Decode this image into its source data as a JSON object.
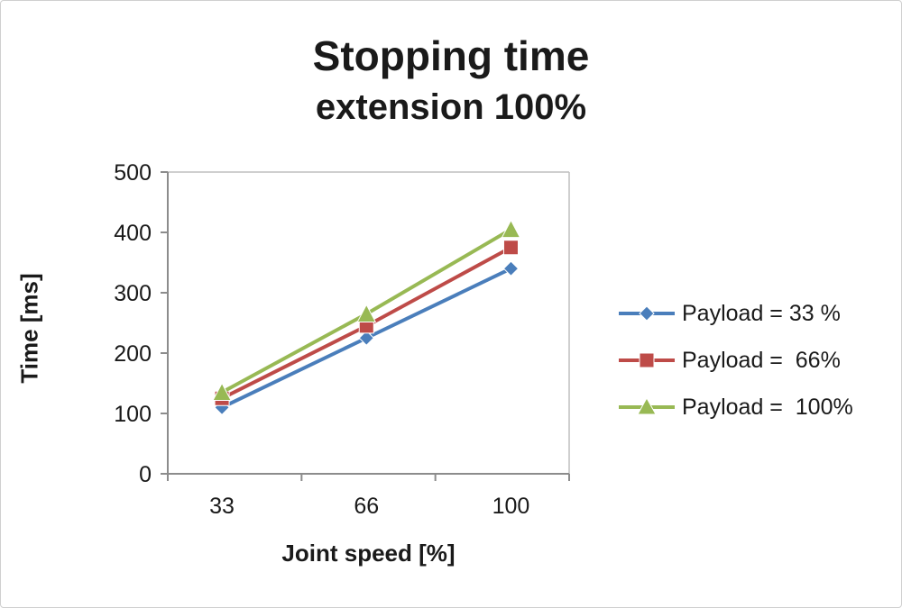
{
  "chart_data": {
    "type": "line",
    "title": "Stopping time extension 100%",
    "title_line1": "Stopping time",
    "title_line2": "extension 100%",
    "xlabel": "Joint speed [%]",
    "ylabel": "Time [ms]",
    "categories": [
      "33",
      "66",
      "100"
    ],
    "ylim": [
      0,
      500
    ],
    "ytick_step": 100,
    "grid": false,
    "legend_position": "right",
    "series": [
      {
        "name": "Payload = 33 %",
        "values": [
          110,
          225,
          340
        ],
        "color": "#4a7ebb",
        "marker": "diamond"
      },
      {
        "name": "Payload =  66%",
        "values": [
          125,
          245,
          375
        ],
        "color": "#be4b48",
        "marker": "square"
      },
      {
        "name": "Payload =  100%",
        "values": [
          135,
          265,
          405
        ],
        "color": "#98b954",
        "marker": "triangle"
      }
    ],
    "axis_color": "#8c8c8c",
    "frame_color": "#bfbfbf"
  }
}
